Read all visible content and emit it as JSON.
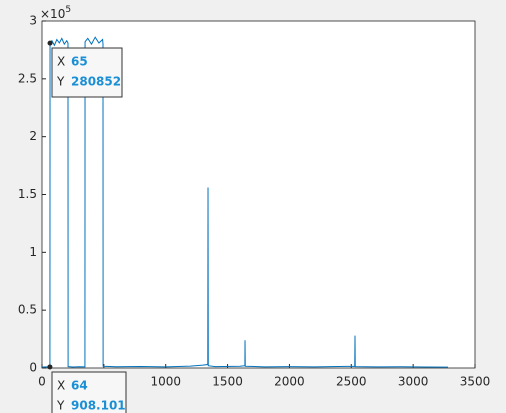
{
  "chart_data": {
    "type": "line",
    "x": [
      1,
      30,
      64,
      65,
      80,
      100,
      120,
      140,
      160,
      180,
      200,
      210,
      211,
      250,
      300,
      347,
      348,
      370,
      400,
      430,
      460,
      490,
      493,
      494,
      600,
      800,
      1000,
      1200,
      1300,
      1340,
      1342,
      1344,
      1400,
      1600,
      1640,
      1641,
      1643,
      1800,
      2000,
      2200,
      2400,
      2528,
      2530,
      2532,
      2700,
      2900,
      3100,
      3282
    ],
    "series": [
      {
        "color": "#0072bd",
        "values": [
          800,
          1000,
          908.101,
          280852,
          283000,
          279000,
          284000,
          281000,
          285000,
          280000,
          283000,
          281000,
          1200,
          900,
          1100,
          1000,
          282000,
          285000,
          280000,
          286000,
          281000,
          284000,
          280000,
          1500,
          1100,
          1300,
          1000,
          1600,
          2500,
          3000,
          156000,
          2000,
          1200,
          1500,
          2000,
          24000,
          1500,
          1000,
          1200,
          1000,
          1300,
          1500,
          28000,
          1200,
          1000,
          1100,
          900,
          800
        ]
      }
    ],
    "xlim": [
      0,
      3500
    ],
    "xticks": [
      0,
      500,
      1000,
      1500,
      2000,
      2500,
      3000,
      3500
    ],
    "ylim": [
      0,
      300000
    ],
    "yticks": [
      0,
      {
        "value": 50000,
        "label": "0.5"
      },
      {
        "value": 100000,
        "label": "1"
      },
      {
        "value": 150000,
        "label": "1.5"
      },
      {
        "value": 200000,
        "label": "2"
      },
      {
        "value": 250000,
        "label": "2.5"
      },
      {
        "value": 300000,
        "label": "3"
      }
    ],
    "y_exponent": {
      "base": "×10",
      "power": "5"
    },
    "datatips": [
      {
        "x_label": "X",
        "x": 65,
        "y_label": "Y",
        "y": 280852
      },
      {
        "x_label": "X",
        "x": 64,
        "y_label": "Y",
        "y": 908.101
      }
    ]
  }
}
